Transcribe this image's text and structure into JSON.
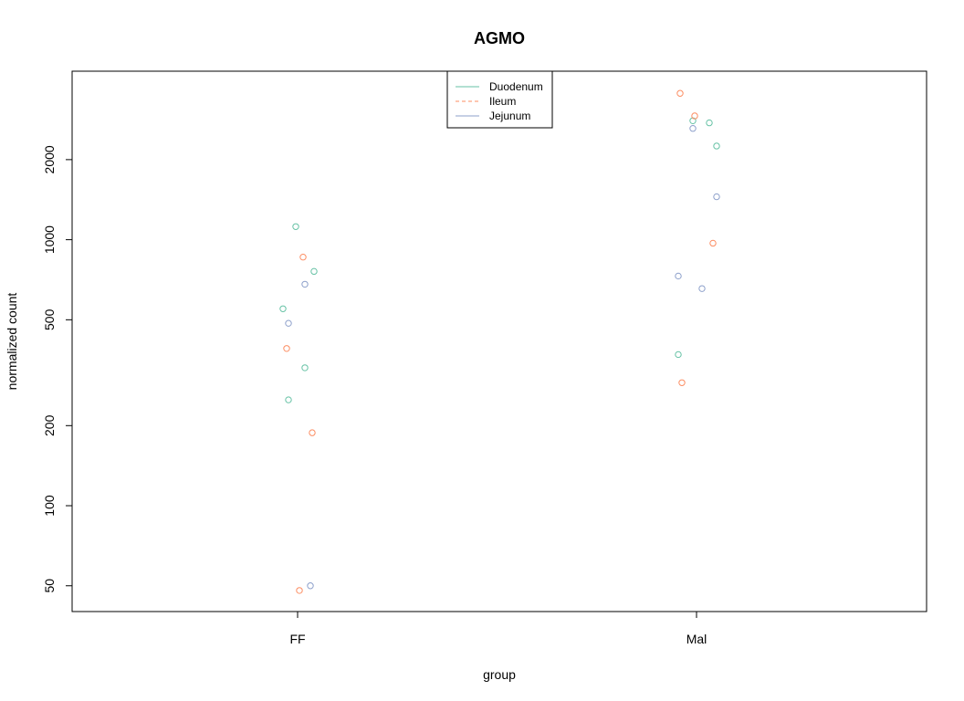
{
  "chart_data": {
    "type": "scatter",
    "title": "AGMO",
    "xlabel": "group",
    "ylabel": "normalized count",
    "y_scale": "log",
    "ylim": [
      40,
      4300
    ],
    "categories": [
      "FF",
      "Mal"
    ],
    "y_ticks": [
      50,
      100,
      200,
      500,
      1000,
      2000
    ],
    "grid": false,
    "legend": {
      "placement": "top-center",
      "entries": [
        {
          "label": "Duodenum",
          "color": "#66c2a5",
          "line": "solid"
        },
        {
          "label": "Ileum",
          "color": "#fc8d62",
          "line": "dashed"
        },
        {
          "label": "Jejunum",
          "color": "#8da0cb",
          "line": "solid"
        }
      ]
    },
    "series": [
      {
        "name": "Duodenum",
        "color": "#66c2a5",
        "points": [
          {
            "group": "FF",
            "y": 1120
          },
          {
            "group": "FF",
            "y": 760
          },
          {
            "group": "FF",
            "y": 550
          },
          {
            "group": "FF",
            "y": 330
          },
          {
            "group": "FF",
            "y": 250
          },
          {
            "group": "Mal",
            "y": 2750
          },
          {
            "group": "Mal",
            "y": 2800
          },
          {
            "group": "Mal",
            "y": 2250
          },
          {
            "group": "Mal",
            "y": 370
          }
        ]
      },
      {
        "name": "Ileum",
        "color": "#fc8d62",
        "points": [
          {
            "group": "FF",
            "y": 860
          },
          {
            "group": "FF",
            "y": 390
          },
          {
            "group": "FF",
            "y": 188
          },
          {
            "group": "FF",
            "y": 48
          },
          {
            "group": "Mal",
            "y": 3550
          },
          {
            "group": "Mal",
            "y": 2920
          },
          {
            "group": "Mal",
            "y": 970
          },
          {
            "group": "Mal",
            "y": 290
          }
        ]
      },
      {
        "name": "Jejunum",
        "color": "#8da0cb",
        "points": [
          {
            "group": "FF",
            "y": 680
          },
          {
            "group": "FF",
            "y": 485
          },
          {
            "group": "FF",
            "y": 50
          },
          {
            "group": "Mal",
            "y": 2620
          },
          {
            "group": "Mal",
            "y": 1450
          },
          {
            "group": "Mal",
            "y": 730
          },
          {
            "group": "Mal",
            "y": 655
          }
        ]
      }
    ]
  }
}
